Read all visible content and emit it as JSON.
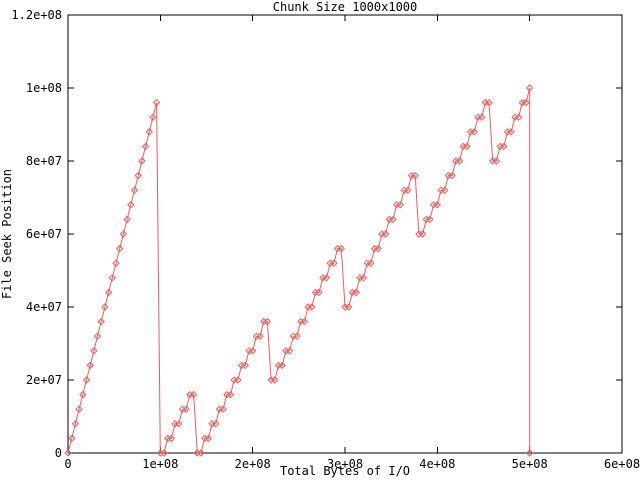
{
  "window": {
    "background": "#ffffff"
  },
  "chart_data": {
    "type": "line",
    "style": "linespoints",
    "title": "Chunk Size 1000x1000",
    "xlabel": "Total Bytes of I/O",
    "ylabel": "File Seek Position",
    "xlim": [
      0,
      600000000
    ],
    "ylim": [
      0,
      120000000
    ],
    "grid": false,
    "legend": "none",
    "line_color": "#ef5b5b",
    "axis_color": "#000000",
    "x_tick_labels": [
      "0",
      "1e+08",
      "2e+08",
      "3e+08",
      "4e+08",
      "5e+08",
      "6e+08"
    ],
    "x_tick_values": [
      0,
      100,
      200,
      300,
      400,
      500,
      600
    ],
    "y_tick_labels": [
      "0",
      "2e+07",
      "4e+07",
      "6e+07",
      "8e+07",
      "1e+08",
      "1.2e+08"
    ],
    "y_tick_values": [
      0,
      20,
      40,
      60,
      80,
      100,
      120
    ],
    "points_unit_bytes": 1000000,
    "points": [
      [
        0,
        0
      ],
      [
        4,
        4
      ],
      [
        8,
        8
      ],
      [
        12,
        12
      ],
      [
        16,
        16
      ],
      [
        20,
        20
      ],
      [
        24,
        24
      ],
      [
        28,
        28
      ],
      [
        32,
        32
      ],
      [
        36,
        36
      ],
      [
        40,
        40
      ],
      [
        44,
        44
      ],
      [
        48,
        48
      ],
      [
        52,
        52
      ],
      [
        56,
        56
      ],
      [
        60,
        60
      ],
      [
        64,
        64
      ],
      [
        68,
        68
      ],
      [
        72,
        72
      ],
      [
        76,
        76
      ],
      [
        80,
        80
      ],
      [
        84,
        84
      ],
      [
        88,
        88
      ],
      [
        92,
        92
      ],
      [
        96,
        96
      ],
      [
        100,
        0
      ],
      [
        104,
        0
      ],
      [
        108,
        4
      ],
      [
        112,
        4
      ],
      [
        116,
        8
      ],
      [
        120,
        8
      ],
      [
        124,
        12
      ],
      [
        128,
        12
      ],
      [
        132,
        16
      ],
      [
        136,
        16
      ],
      [
        140,
        0
      ],
      [
        144,
        0
      ],
      [
        148,
        4
      ],
      [
        152,
        4
      ],
      [
        156,
        8
      ],
      [
        160,
        8
      ],
      [
        164,
        12
      ],
      [
        168,
        12
      ],
      [
        172,
        16
      ],
      [
        176,
        16
      ],
      [
        180,
        20
      ],
      [
        184,
        20
      ],
      [
        188,
        24
      ],
      [
        192,
        24
      ],
      [
        196,
        28
      ],
      [
        200,
        28
      ],
      [
        204,
        32
      ],
      [
        208,
        32
      ],
      [
        212,
        36
      ],
      [
        216,
        36
      ],
      [
        220,
        20
      ],
      [
        224,
        20
      ],
      [
        228,
        24
      ],
      [
        232,
        24
      ],
      [
        236,
        28
      ],
      [
        240,
        28
      ],
      [
        244,
        32
      ],
      [
        248,
        32
      ],
      [
        252,
        36
      ],
      [
        256,
        36
      ],
      [
        260,
        40
      ],
      [
        264,
        40
      ],
      [
        268,
        44
      ],
      [
        272,
        44
      ],
      [
        276,
        48
      ],
      [
        280,
        48
      ],
      [
        284,
        52
      ],
      [
        288,
        52
      ],
      [
        292,
        56
      ],
      [
        296,
        56
      ],
      [
        300,
        40
      ],
      [
        304,
        40
      ],
      [
        308,
        44
      ],
      [
        312,
        44
      ],
      [
        316,
        48
      ],
      [
        320,
        48
      ],
      [
        324,
        52
      ],
      [
        328,
        52
      ],
      [
        332,
        56
      ],
      [
        336,
        56
      ],
      [
        340,
        60
      ],
      [
        344,
        60
      ],
      [
        348,
        64
      ],
      [
        352,
        64
      ],
      [
        356,
        68
      ],
      [
        360,
        68
      ],
      [
        364,
        72
      ],
      [
        368,
        72
      ],
      [
        372,
        76
      ],
      [
        376,
        76
      ],
      [
        380,
        60
      ],
      [
        384,
        60
      ],
      [
        388,
        64
      ],
      [
        392,
        64
      ],
      [
        396,
        68
      ],
      [
        400,
        68
      ],
      [
        404,
        72
      ],
      [
        408,
        72
      ],
      [
        412,
        76
      ],
      [
        416,
        76
      ],
      [
        420,
        80
      ],
      [
        424,
        80
      ],
      [
        428,
        84
      ],
      [
        432,
        84
      ],
      [
        436,
        88
      ],
      [
        440,
        88
      ],
      [
        444,
        92
      ],
      [
        448,
        92
      ],
      [
        452,
        96
      ],
      [
        456,
        96
      ],
      [
        460,
        80
      ],
      [
        464,
        80
      ],
      [
        468,
        84
      ],
      [
        472,
        84
      ],
      [
        476,
        88
      ],
      [
        480,
        88
      ],
      [
        484,
        92
      ],
      [
        488,
        92
      ],
      [
        492,
        96
      ],
      [
        496,
        96
      ],
      [
        500,
        100
      ],
      [
        500,
        0
      ]
    ]
  }
}
